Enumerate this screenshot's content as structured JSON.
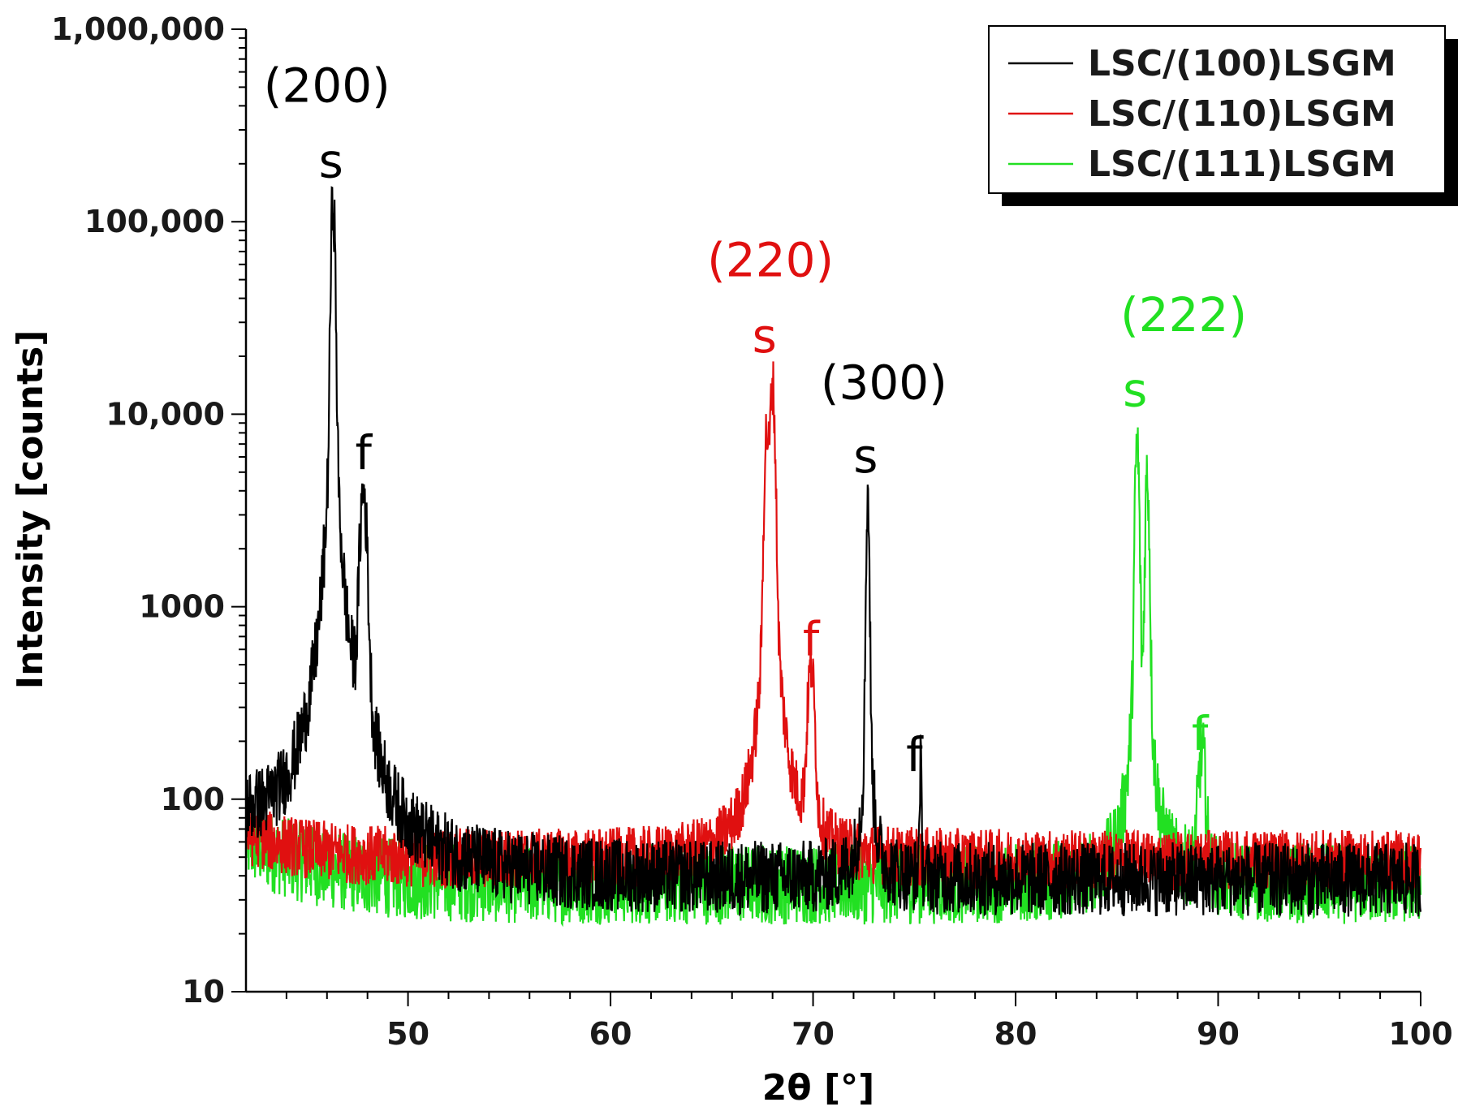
{
  "chart_data": {
    "type": "line",
    "title": "",
    "xlabel": "2θ [°]",
    "ylabel": "Intensity [counts]",
    "xlim": [
      42,
      100
    ],
    "ylim": [
      10,
      1000000
    ],
    "yscale": "log",
    "x_ticks": [
      {
        "value": 50,
        "label": "50"
      },
      {
        "value": 60,
        "label": "60"
      },
      {
        "value": 70,
        "label": "70"
      },
      {
        "value": 80,
        "label": "80"
      },
      {
        "value": 90,
        "label": "90"
      },
      {
        "value": 100,
        "label": "100"
      }
    ],
    "y_ticks": [
      {
        "value": 10,
        "label": "10"
      },
      {
        "value": 100,
        "label": "100"
      },
      {
        "value": 1000,
        "label": "1000"
      },
      {
        "value": 10000,
        "label": "10,000"
      },
      {
        "value": 100000,
        "label": "100,000"
      },
      {
        "value": 1000000,
        "label": "1,000,000"
      }
    ],
    "grid": false,
    "legend_position": "top-right",
    "series": [
      {
        "name": "LSC/(100)LSGM",
        "color": "#000000",
        "background": 38,
        "noise": 0.55,
        "start_level": 70,
        "peaks": [
          {
            "x": 46.3,
            "height": 130000,
            "width": 0.16
          },
          {
            "x": 47.8,
            "height": 3800,
            "width": 0.28
          },
          {
            "x": 72.7,
            "height": 3800,
            "width": 0.12
          },
          {
            "x": 75.3,
            "height": 110,
            "width": 0.08
          }
        ]
      },
      {
        "name": "LSC/(110)LSGM",
        "color": "#e01010",
        "background": 48,
        "noise": 0.45,
        "start_level": 65,
        "peaks": [
          {
            "x": 67.7,
            "height": 7500,
            "width": 0.18
          },
          {
            "x": 68.0,
            "height": 14000,
            "width": 0.2
          },
          {
            "x": 69.9,
            "height": 420,
            "width": 0.28
          }
        ]
      },
      {
        "name": "LSC/(111)LSGM",
        "color": "#22e022",
        "background": 36,
        "noise": 0.6,
        "start_level": 60,
        "peaks": [
          {
            "x": 86.0,
            "height": 7000,
            "width": 0.16
          },
          {
            "x": 86.5,
            "height": 4800,
            "width": 0.16
          },
          {
            "x": 89.2,
            "height": 135,
            "width": 0.3
          }
        ]
      }
    ],
    "annotations": [
      {
        "text": "(200)",
        "x": 46.0,
        "y": 420000,
        "color": "#000000"
      },
      {
        "text": "s",
        "x": 46.2,
        "y": 170000,
        "color": "#000000"
      },
      {
        "text": "f",
        "x": 47.8,
        "y": 5200,
        "color": "#000000"
      },
      {
        "text": "(220)",
        "x": 67.9,
        "y": 52000,
        "color": "#e01010"
      },
      {
        "text": "s",
        "x": 67.6,
        "y": 21000,
        "color": "#e01010"
      },
      {
        "text": "f",
        "x": 69.9,
        "y": 560,
        "color": "#e01010"
      },
      {
        "text": "(300)",
        "x": 73.5,
        "y": 12000,
        "color": "#000000"
      },
      {
        "text": "s",
        "x": 72.6,
        "y": 5000,
        "color": "#000000"
      },
      {
        "text": "f",
        "x": 75.0,
        "y": 140,
        "color": "#000000"
      },
      {
        "text": "(222)",
        "x": 88.3,
        "y": 27000,
        "color": "#22e022"
      },
      {
        "text": "s",
        "x": 85.9,
        "y": 11000,
        "color": "#22e022"
      },
      {
        "text": "f",
        "x": 89.1,
        "y": 180,
        "color": "#22e022"
      }
    ]
  }
}
